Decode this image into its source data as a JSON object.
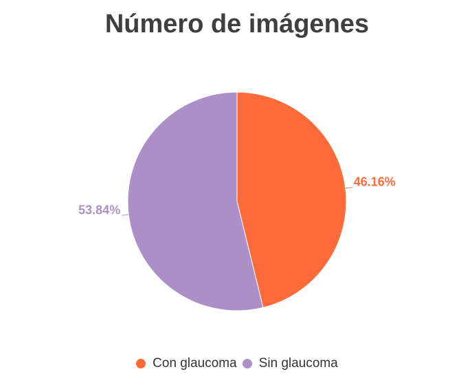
{
  "chart_data": {
    "type": "pie",
    "title": "Número de imágenes",
    "slices": [
      {
        "label": "Con glaucoma",
        "value": 46.16,
        "display": "46.16%",
        "color": "#ff6a3a"
      },
      {
        "label": "Sin glaucoma",
        "value": 53.84,
        "display": "53.84%",
        "color": "#ab8fc6"
      }
    ],
    "legend_position": "bottom"
  }
}
